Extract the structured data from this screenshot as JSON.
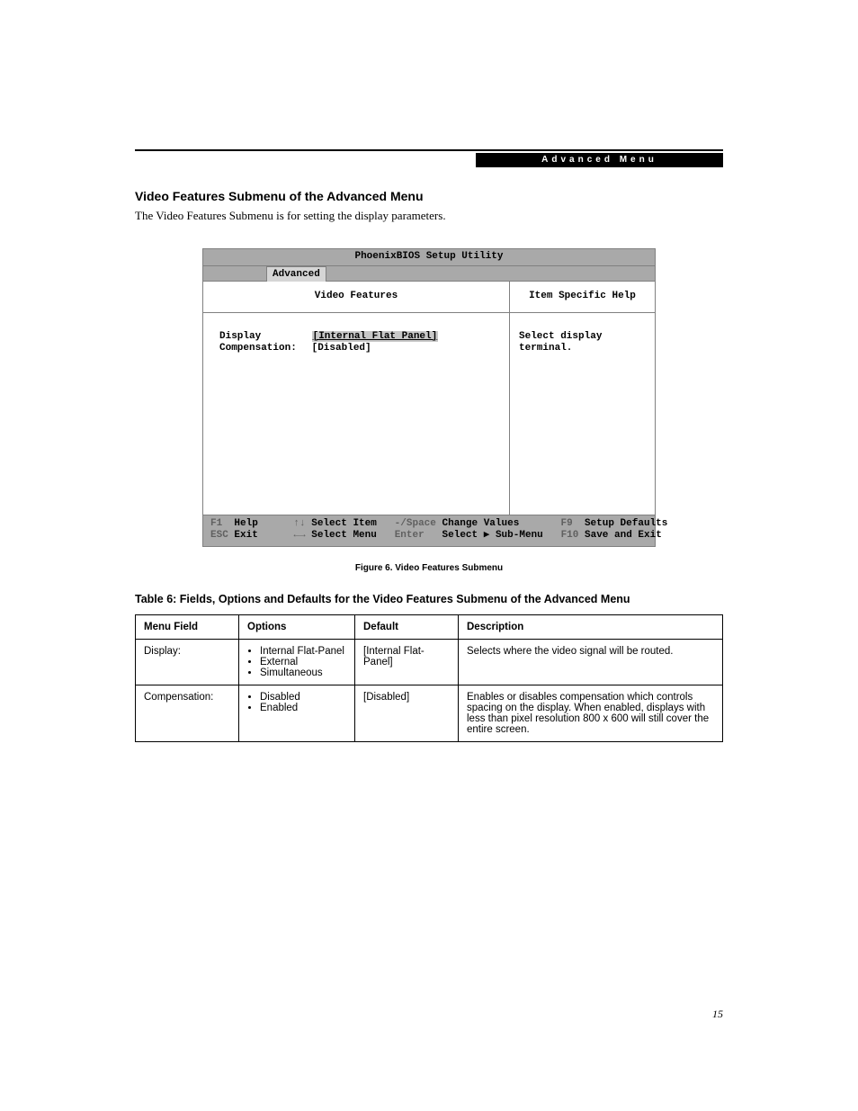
{
  "header_bar": "Advanced Menu",
  "section_title": "Video Features Submenu of the Advanced Menu",
  "intro_text": "The Video Features Submenu is for setting the display parameters.",
  "bios": {
    "window_title": "PhoenixBIOS Setup Utility",
    "active_tab": "Advanced",
    "left_header": "Video Features",
    "right_header": "Item Specific Help",
    "fields": {
      "display_label": "Display",
      "display_value": "[Internal Flat Panel]",
      "compensation_label": "Compensation:",
      "compensation_value": "[Disabled]"
    },
    "help_text": "Select display terminal.",
    "footer": {
      "f1": "F1",
      "help": "Help",
      "updown": "↑↓",
      "select_item": "Select Item",
      "minus_space": "-/Space",
      "change_values": "Change Values",
      "f9": "F9",
      "setup_defaults": "Setup Defaults",
      "esc": "ESC",
      "exit": "Exit",
      "leftright": "←→",
      "select_menu": "Select Menu",
      "enter": "Enter",
      "select_submenu": "Select ▶ Sub-Menu",
      "f10": "F10",
      "save_exit": "Save and Exit"
    }
  },
  "figure_caption": "Figure 6.  Video Features Submenu",
  "table_title": "Table 6: Fields, Options and Defaults for the Video Features Submenu of the Advanced Menu",
  "table": {
    "headers": {
      "menu_field": "Menu Field",
      "options": "Options",
      "default": "Default",
      "description": "Description"
    },
    "rows": [
      {
        "menu_field": "Display:",
        "options": [
          "Internal Flat-Panel",
          "External",
          "Simultaneous"
        ],
        "default": "[Internal Flat-Panel]",
        "description": "Selects where the video signal will be routed."
      },
      {
        "menu_field": "Compensation:",
        "options": [
          "Disabled",
          "Enabled"
        ],
        "default": "[Disabled]",
        "description": "Enables or disables compensation which controls spacing on the display. When enabled, displays with less than pixel resolution 800 x 600 will still cover the entire screen."
      }
    ]
  },
  "page_number": "15",
  "colors": {
    "page_bg": "#ffffff",
    "text": "#000000",
    "bios_header_bg": "#a9a9a9",
    "bios_tab_active_bg": "#d5d5d5",
    "bios_border": "#808080",
    "bios_dim_text": "#606060",
    "header_bar_bg": "#000000",
    "header_bar_fg": "#ffffff"
  },
  "fonts": {
    "body_family": "Georgia, 'Times New Roman', serif",
    "heading_family": "Arial, Helvetica, sans-serif",
    "mono_family": "'Courier New', monospace",
    "section_title_size_pt": 11,
    "body_size_pt": 10,
    "table_size_pt": 9,
    "caption_size_pt": 8,
    "bios_size_pt": 8
  }
}
